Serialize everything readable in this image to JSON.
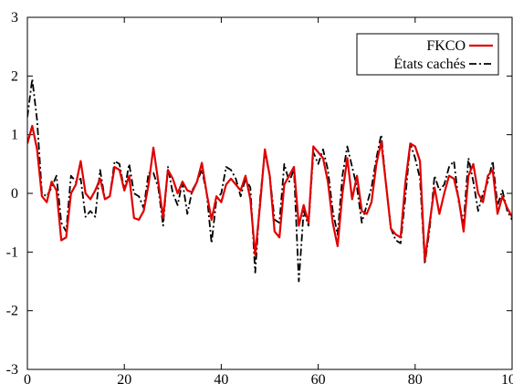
{
  "chart_data": {
    "type": "line",
    "title": "",
    "xlabel": "",
    "ylabel": "",
    "xlim": [
      0,
      100
    ],
    "ylim": [
      -3,
      3
    ],
    "xticks": [
      0,
      20,
      40,
      60,
      80,
      100
    ],
    "yticks": [
      -3,
      -2,
      -1,
      0,
      1,
      2,
      3
    ],
    "xtick_labels": [
      "0",
      "20",
      "40",
      "60",
      "80",
      "100"
    ],
    "ytick_labels": [
      "-3",
      "-2",
      "-1",
      "0",
      "1",
      "2",
      "3"
    ],
    "grid": false,
    "legend_position": "top-right",
    "x": [
      0,
      1,
      2,
      3,
      4,
      5,
      6,
      7,
      8,
      9,
      10,
      11,
      12,
      13,
      14,
      15,
      16,
      17,
      18,
      19,
      20,
      21,
      22,
      23,
      24,
      25,
      26,
      27,
      28,
      29,
      30,
      31,
      32,
      33,
      34,
      35,
      36,
      37,
      38,
      39,
      40,
      41,
      42,
      43,
      44,
      45,
      46,
      47,
      48,
      49,
      50,
      51,
      52,
      53,
      54,
      55,
      56,
      57,
      58,
      59,
      60,
      61,
      62,
      63,
      64,
      65,
      66,
      67,
      68,
      69,
      70,
      71,
      72,
      73,
      74,
      75,
      76,
      77,
      78,
      79,
      80,
      81,
      82,
      83,
      84,
      85,
      86,
      87,
      88,
      89,
      90,
      91,
      92,
      93,
      94,
      95,
      96,
      97,
      98,
      99,
      100
    ],
    "series": [
      {
        "name": "FKCO",
        "color": "#e00000",
        "style": "solid",
        "values": [
          0.85,
          1.15,
          0.75,
          -0.05,
          -0.15,
          0.2,
          0.05,
          -0.8,
          -0.75,
          0.0,
          0.15,
          0.55,
          0.0,
          -0.1,
          0.05,
          0.25,
          -0.1,
          -0.05,
          0.45,
          0.4,
          0.05,
          0.3,
          -0.42,
          -0.45,
          -0.3,
          0.15,
          0.78,
          0.2,
          -0.42,
          0.4,
          0.25,
          0.0,
          0.2,
          0.05,
          0.02,
          0.2,
          0.52,
          0.0,
          -0.45,
          -0.05,
          -0.15,
          0.15,
          0.25,
          0.15,
          0.05,
          0.3,
          -0.1,
          -1.05,
          -0.2,
          0.75,
          0.3,
          -0.65,
          -0.75,
          0.15,
          0.3,
          0.45,
          -0.55,
          -0.2,
          -0.5,
          0.8,
          0.7,
          0.6,
          0.2,
          -0.5,
          -0.9,
          0.0,
          0.6,
          -0.1,
          0.3,
          -0.3,
          -0.35,
          -0.15,
          0.5,
          0.88,
          0.15,
          -0.6,
          -0.7,
          -0.75,
          0.2,
          0.85,
          0.8,
          0.55,
          -1.15,
          -0.5,
          0.1,
          -0.35,
          0.0,
          0.3,
          0.25,
          -0.1,
          -0.65,
          0.3,
          0.5,
          0.0,
          -0.15,
          0.3,
          0.4,
          -0.35,
          -0.05,
          -0.25,
          -0.4
        ]
      },
      {
        "name": "États cachés",
        "color": "#000000",
        "style": "dashdot",
        "values": [
          1.3,
          1.95,
          1.25,
          0.0,
          -0.05,
          0.1,
          0.3,
          -0.5,
          -0.65,
          0.3,
          0.2,
          0.25,
          -0.4,
          -0.3,
          -0.4,
          0.4,
          -0.1,
          -0.05,
          0.55,
          0.5,
          0.05,
          0.5,
          0.0,
          -0.05,
          -0.25,
          0.35,
          0.35,
          0.1,
          -0.55,
          0.45,
          0.0,
          -0.2,
          0.2,
          -0.35,
          0.05,
          0.2,
          0.4,
          0.0,
          -0.85,
          -0.1,
          0.0,
          0.45,
          0.4,
          0.25,
          -0.05,
          0.25,
          0.1,
          -1.35,
          -0.1,
          0.7,
          0.3,
          -0.45,
          -0.5,
          0.5,
          0.2,
          0.4,
          -1.5,
          -0.3,
          -0.55,
          0.7,
          0.5,
          0.75,
          0.4,
          -0.3,
          -0.7,
          0.3,
          0.8,
          0.45,
          0.1,
          -0.5,
          -0.2,
          0.1,
          0.6,
          1.0,
          0.15,
          -0.6,
          -0.8,
          -0.85,
          -0.05,
          0.85,
          0.6,
          0.25,
          -1.2,
          -0.6,
          0.3,
          0.05,
          0.15,
          0.45,
          0.55,
          -0.15,
          -0.5,
          0.6,
          0.2,
          -0.3,
          0.0,
          0.2,
          0.55,
          -0.2,
          0.05,
          -0.3,
          -0.45
        ]
      }
    ]
  }
}
